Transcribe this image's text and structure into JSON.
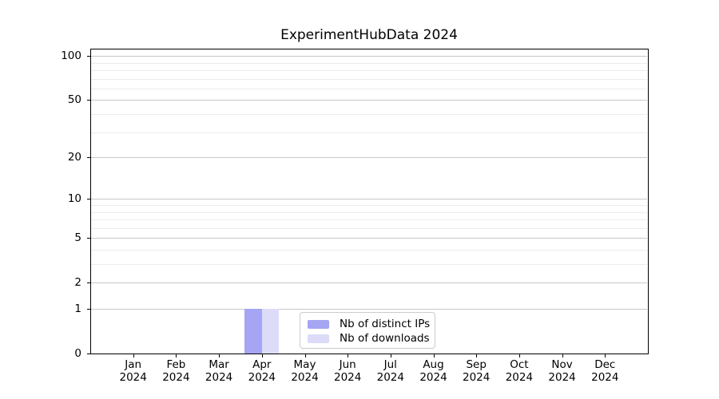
{
  "figure": {
    "title": "ExperimentHubData 2024"
  },
  "chart_data": {
    "type": "bar",
    "title": "ExperimentHubData 2024",
    "categories": [
      "Jan",
      "Feb",
      "Mar",
      "Apr",
      "May",
      "Jun",
      "Jul",
      "Aug",
      "Sep",
      "Oct",
      "Nov",
      "Dec"
    ],
    "category_year": "2024",
    "series": [
      {
        "name": "Nb of distinct IPs",
        "color": "#a5a5f3",
        "values": [
          0,
          0,
          0,
          1,
          0,
          0,
          0,
          0,
          0,
          0,
          0,
          0
        ]
      },
      {
        "name": "Nb of downloads",
        "color": "#dcdcf9",
        "values": [
          0,
          0,
          0,
          1,
          0,
          0,
          0,
          0,
          0,
          0,
          0,
          0
        ]
      }
    ],
    "xlabel": "",
    "ylabel": "",
    "yscale": "log1p",
    "ylim": [
      0,
      113
    ],
    "yticks": [
      0,
      1,
      2,
      5,
      10,
      20,
      50,
      100
    ],
    "ytick_labels": [
      "0",
      "1",
      "2",
      "5",
      "10",
      "20",
      "50",
      "100"
    ],
    "minor_yticks": [
      3,
      4,
      6,
      7,
      8,
      9,
      30,
      40,
      60,
      70,
      80,
      90
    ],
    "grid": "horizontal",
    "legend_position": "lower center",
    "colors": {
      "major_grid": "#c8c8c8",
      "minor_grid": "#ececec",
      "axis": "#000000",
      "background": "#ffffff",
      "text": "#000000"
    }
  }
}
